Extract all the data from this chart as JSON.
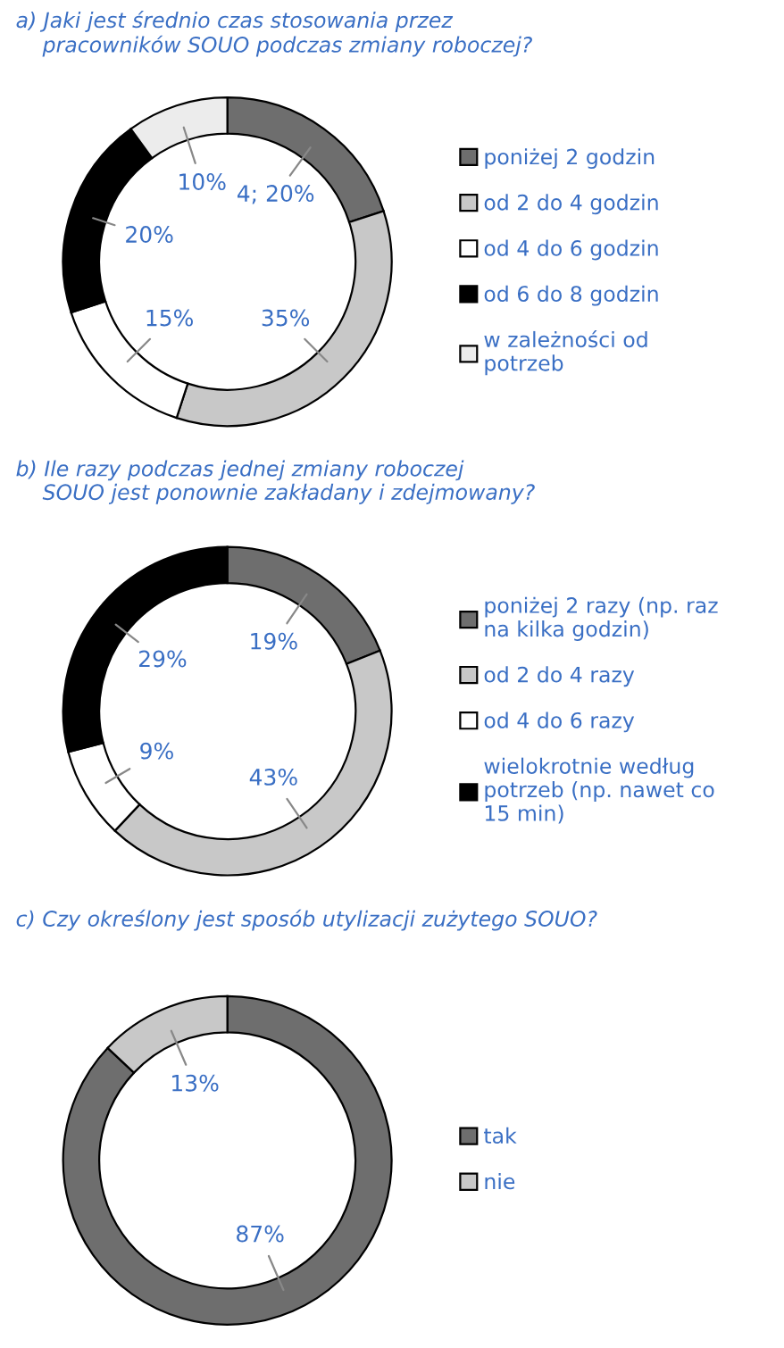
{
  "chart_data": [
    {
      "type": "donut",
      "title": "a) Jaki jest średnio czas stosowania przez\n    pracowników SOUO podczas zmiany roboczej?",
      "categories": [
        "poniżej 2 godzin",
        "od 2 do 4 godzin",
        "od 4 do 6 godzin",
        "od 6 do 8 godzin",
        "w zależności od\npotrzeb"
      ],
      "values": [
        20,
        35,
        15,
        20,
        10
      ],
      "colors": [
        "#6e6e6e",
        "#c8c8c8",
        "#ffffff",
        "#000000",
        "#ececec"
      ],
      "value_labels": [
        "4; 20%",
        "35%",
        "15%",
        "20%",
        "10%"
      ],
      "legend": "right"
    },
    {
      "type": "donut",
      "title": "b) Ile razy podczas jednej zmiany roboczej\n    SOUO jest ponownie zakładany i zdejmowany?",
      "categories": [
        "poniżej 2 razy (np. raz\nna kilka godzin)",
        "od 2 do 4 razy",
        "od 4 do 6 razy",
        "wielokrotnie według\npotrzeb (np. nawet co\n15 min)"
      ],
      "values": [
        19,
        43,
        9,
        29
      ],
      "colors": [
        "#6e6e6e",
        "#c8c8c8",
        "#ffffff",
        "#000000"
      ],
      "value_labels": [
        "19%",
        "43%",
        "9%",
        "29%"
      ],
      "legend": "right"
    },
    {
      "type": "donut",
      "title": "c) Czy określony jest sposób utylizacji zużytego SOUO?",
      "categories": [
        "tak",
        "nie"
      ],
      "values": [
        87,
        13
      ],
      "colors": [
        "#6e6e6e",
        "#c8c8c8"
      ],
      "value_labels": [
        "87%",
        "13%"
      ],
      "legend": "right"
    }
  ]
}
